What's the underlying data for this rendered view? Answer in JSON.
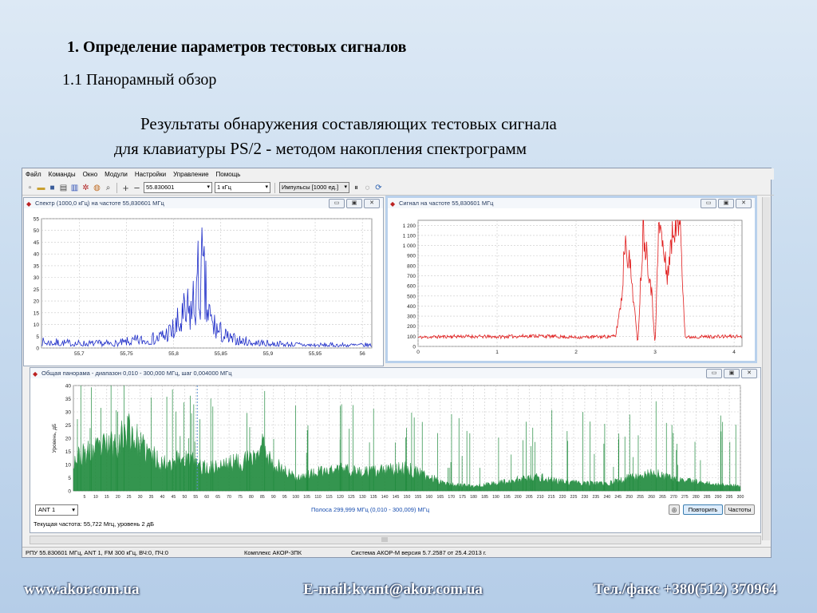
{
  "slide": {
    "heading": "1. Определение параметров тестовых сигналов",
    "subheading": "1.1 Панорамный обзор",
    "desc_line1": "Результаты обнаружения составляющих тестовых сигнала",
    "desc_line2": "для клавиатуры PS/2 - методом накопления спектрограмм"
  },
  "footer": {
    "website": "www.akor.com.ua",
    "email": "E-mail:kvant@akor.com.ua",
    "phone": "Тел./факс +380(512) 370964"
  },
  "app": {
    "menu": [
      "Файл",
      "Команды",
      "Окно",
      "Модули",
      "Настройки",
      "Управление",
      "Помощь"
    ],
    "toolbar": {
      "frequency_value": "55.830601",
      "bandwidth_value": "1 кГц",
      "mode_value": "Импульсы [1000 ед.]"
    },
    "spectrum_window": {
      "title": "Спектр (1000,0 кГц)  на частоте 55,830601 МГц"
    },
    "signal_window": {
      "title": "Сигнал на частоте 55,830601 МГц"
    },
    "panorama_window": {
      "title": "Общая панорама - диапазон 0,010 - 300,000 МГц, шаг 0,004000 МГц",
      "ylabel": "Уровень, дБ",
      "antenna_value": "ANT 1",
      "band_text": "Полоса 299,999 МГц (0,010 - 300,009) МГц",
      "repeat_label": "Повторить",
      "frequencies_label": "Частоты",
      "current_text": "Текущая частота: 55,722 Мгц, уровень 2 дБ"
    },
    "status": {
      "left": "РПУ 55.830601 МГц, ANT 1, FM 300 кГц, ВЧ:0, ПЧ:0",
      "middle": "Комплекс АКОР-3ПК",
      "right": "Система АКОР-М версия 5.7.2587 от 25.4.2013 г."
    },
    "window_button_glyphs": [
      "▭",
      "▣",
      "✕"
    ],
    "colors": {
      "spectrum": "#1f2ec8",
      "signal": "#e01a1a",
      "panorama": "#1f8a3c",
      "marker": "#5a8fd0"
    }
  },
  "chart_data": [
    {
      "type": "line",
      "name": "spectrum",
      "x_ticks": [
        "55,7",
        "55,75",
        "55,8",
        "55,85",
        "55,9",
        "55,95",
        "56"
      ],
      "y_ticks": [
        "0",
        "5",
        "10",
        "15",
        "20",
        "25",
        "30",
        "35",
        "40",
        "45",
        "50",
        "55"
      ],
      "xlim": [
        55.66,
        56.01
      ],
      "ylim": [
        0,
        55
      ],
      "grid": true,
      "series": [
        {
          "x": [
            55.66,
            55.7,
            55.74,
            55.76,
            55.78,
            55.8,
            55.81,
            55.82,
            55.825,
            55.83,
            55.835,
            55.84,
            55.85,
            55.86,
            55.88,
            55.9,
            55.95,
            56.01
          ],
          "values": [
            4,
            3,
            3,
            5,
            6,
            12,
            20,
            28,
            40,
            49,
            30,
            18,
            10,
            6,
            4,
            3,
            2,
            2
          ]
        }
      ]
    },
    {
      "type": "line",
      "name": "signal",
      "x_ticks": [
        "0",
        "1",
        "2",
        "3",
        "4"
      ],
      "y_ticks": [
        "0",
        "100",
        "200",
        "300",
        "400",
        "500",
        "600",
        "700",
        "800",
        "900",
        "1 000",
        "1 100",
        "1 200"
      ],
      "xlim": [
        0,
        4.1
      ],
      "ylim": [
        0,
        1250
      ],
      "grid": true,
      "series": [
        {
          "x": [
            0,
            0.5,
            1.0,
            1.5,
            2.0,
            2.5,
            2.58,
            2.62,
            2.7,
            2.78,
            2.85,
            2.95,
            3.0,
            3.05,
            3.15,
            3.25,
            3.32,
            3.38,
            3.5,
            4.1
          ],
          "values": [
            90,
            100,
            95,
            105,
            90,
            100,
            500,
            1100,
            700,
            20,
            1200,
            600,
            20,
            1250,
            700,
            1250,
            1250,
            90,
            95,
            100
          ]
        }
      ]
    },
    {
      "type": "area",
      "name": "panorama",
      "x_ticks": [
        "5",
        "10",
        "15",
        "20",
        "25",
        "30",
        "35",
        "40",
        "45",
        "50",
        "55",
        "60",
        "65",
        "70",
        "75",
        "80",
        "85",
        "90",
        "95",
        "100",
        "105",
        "110",
        "115",
        "120",
        "125",
        "130",
        "135",
        "140",
        "145",
        "150",
        "155",
        "160",
        "165",
        "170",
        "175",
        "180",
        "185",
        "190",
        "195",
        "200",
        "205",
        "210",
        "215",
        "220",
        "225",
        "230",
        "235",
        "240",
        "245",
        "250",
        "255",
        "260",
        "265",
        "270",
        "275",
        "280",
        "285",
        "290",
        "295",
        "300"
      ],
      "y_ticks": [
        "0",
        "5",
        "10",
        "15",
        "20",
        "25",
        "30",
        "35",
        "40"
      ],
      "ylabel": "Уровень, дБ",
      "xlim": [
        0,
        300
      ],
      "ylim": [
        0,
        40
      ],
      "grid": true,
      "series": [
        {
          "x": [
            0,
            10,
            20,
            25,
            30,
            40,
            50,
            55,
            60,
            70,
            80,
            85,
            90,
            100,
            110,
            120,
            130,
            140,
            150,
            160,
            170,
            180,
            200,
            210,
            220,
            240,
            250,
            260,
            270,
            280,
            290,
            300
          ],
          "values": [
            14,
            18,
            22,
            28,
            20,
            12,
            15,
            12,
            10,
            12,
            14,
            20,
            12,
            6,
            8,
            10,
            8,
            9,
            10,
            6,
            3,
            2,
            5,
            6,
            4,
            3,
            6,
            8,
            5,
            4,
            3,
            2
          ]
        }
      ]
    }
  ]
}
